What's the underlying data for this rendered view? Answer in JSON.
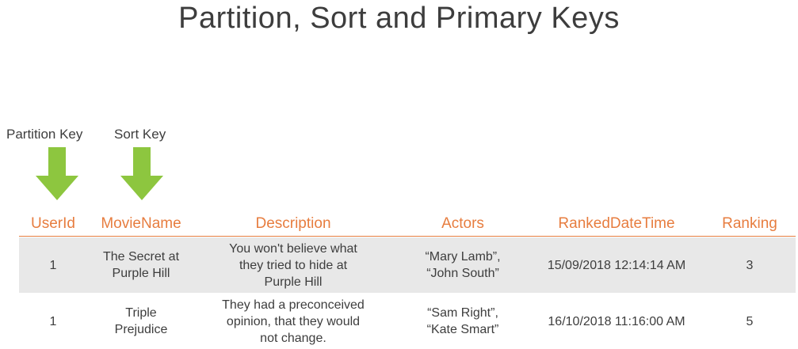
{
  "title": "Partition, Sort and Primary Keys",
  "annotations": {
    "partition_key": "Partition Key",
    "sort_key": "Sort Key",
    "arrow_color": "#8dc63f"
  },
  "table": {
    "header_color": "#e77d3f",
    "columns": [
      "UserId",
      "MovieName",
      "Description",
      "Actors",
      "RankedDateTime",
      "Ranking"
    ],
    "rows": [
      {
        "userid": "1",
        "moviename": [
          "The Secret at",
          "Purple Hill"
        ],
        "description": [
          "You won't believe what",
          "they tried to hide at",
          "Purple Hill"
        ],
        "actors": [
          "“Mary Lamb”,",
          "“John South”"
        ],
        "rankeddatetime": "15/09/2018 12:14:14 AM",
        "ranking": "3"
      },
      {
        "userid": "1",
        "moviename": [
          "Triple",
          "Prejudice"
        ],
        "description": [
          "They had a preconceived",
          "opinion, that they would",
          "not change."
        ],
        "actors": [
          "“Sam Right”,",
          "“Kate Smart”"
        ],
        "rankeddatetime": "16/10/2018 11:16:00 AM",
        "ranking": "5"
      }
    ]
  }
}
